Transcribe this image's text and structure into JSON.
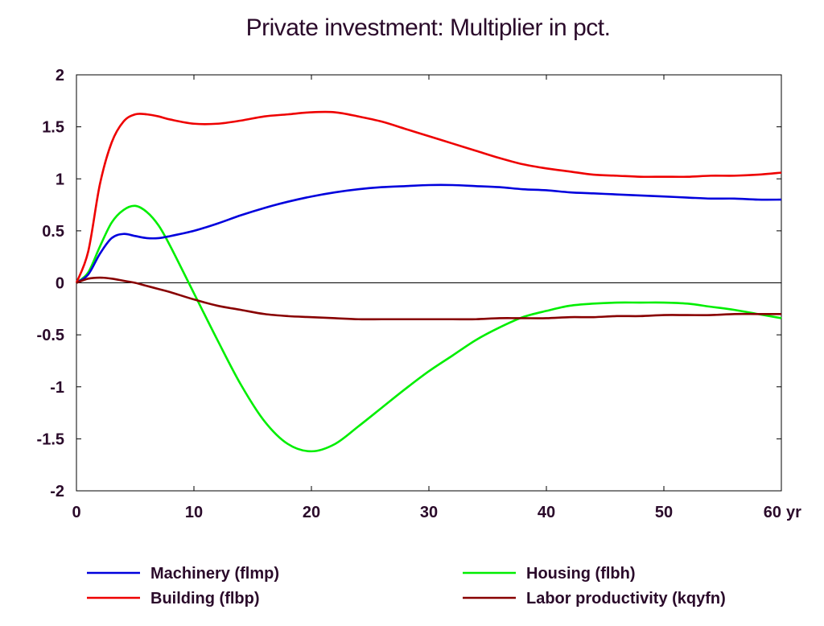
{
  "chart_data": {
    "type": "line",
    "title": "Private investment: Multiplier in pct.",
    "x_unit": "yr",
    "xlim": [
      0,
      60
    ],
    "ylim": [
      -2,
      2
    ],
    "x_ticks": [
      0,
      10,
      20,
      30,
      40,
      50,
      60
    ],
    "x_tick_labels": [
      "0",
      "10",
      "20",
      "30",
      "40",
      "50",
      "60"
    ],
    "y_ticks": [
      2,
      1.5,
      1,
      0.5,
      0,
      -0.5,
      -1,
      -1.5,
      -2
    ],
    "y_tick_labels": [
      "2",
      "1.5",
      "1",
      "0.5",
      "0",
      "-0.5",
      "-1",
      "-1.5",
      "-2"
    ],
    "grid": false,
    "legend_position": "bottom",
    "x": [
      0,
      1,
      2,
      3,
      4,
      5,
      6,
      7,
      8,
      10,
      12,
      14,
      16,
      18,
      20,
      22,
      24,
      26,
      28,
      30,
      32,
      34,
      36,
      38,
      40,
      42,
      44,
      46,
      48,
      50,
      52,
      54,
      56,
      58,
      60
    ],
    "series": [
      {
        "name": "Machinery (flmp)",
        "color": "#0000dd",
        "values": [
          0,
          0.08,
          0.28,
          0.43,
          0.47,
          0.45,
          0.43,
          0.43,
          0.45,
          0.5,
          0.57,
          0.65,
          0.72,
          0.78,
          0.83,
          0.87,
          0.9,
          0.92,
          0.93,
          0.94,
          0.94,
          0.93,
          0.92,
          0.9,
          0.89,
          0.87,
          0.86,
          0.85,
          0.84,
          0.83,
          0.82,
          0.81,
          0.81,
          0.8,
          0.8
        ]
      },
      {
        "name": "Building (flbp)",
        "color": "#ee0000",
        "values": [
          0,
          0.3,
          0.95,
          1.35,
          1.55,
          1.62,
          1.62,
          1.6,
          1.57,
          1.53,
          1.53,
          1.56,
          1.6,
          1.62,
          1.64,
          1.64,
          1.6,
          1.55,
          1.48,
          1.41,
          1.34,
          1.27,
          1.2,
          1.14,
          1.1,
          1.07,
          1.04,
          1.03,
          1.02,
          1.02,
          1.02,
          1.03,
          1.03,
          1.04,
          1.06
        ]
      },
      {
        "name": "Housing (flbh)",
        "color": "#00ee00",
        "values": [
          0,
          0.1,
          0.35,
          0.58,
          0.7,
          0.74,
          0.68,
          0.55,
          0.35,
          -0.1,
          -0.55,
          -0.98,
          -1.33,
          -1.55,
          -1.62,
          -1.55,
          -1.38,
          -1.2,
          -1.02,
          -0.85,
          -0.7,
          -0.55,
          -0.43,
          -0.33,
          -0.27,
          -0.22,
          -0.2,
          -0.19,
          -0.19,
          -0.19,
          -0.2,
          -0.23,
          -0.26,
          -0.3,
          -0.34
        ]
      },
      {
        "name": "Labor productivity (kqyfn)",
        "color": "#880000",
        "values": [
          0,
          0.04,
          0.05,
          0.04,
          0.02,
          0.0,
          -0.03,
          -0.06,
          -0.09,
          -0.16,
          -0.22,
          -0.26,
          -0.3,
          -0.32,
          -0.33,
          -0.34,
          -0.35,
          -0.35,
          -0.35,
          -0.35,
          -0.35,
          -0.35,
          -0.34,
          -0.34,
          -0.34,
          -0.33,
          -0.33,
          -0.32,
          -0.32,
          -0.31,
          -0.31,
          -0.31,
          -0.3,
          -0.3,
          -0.3
        ]
      }
    ]
  }
}
